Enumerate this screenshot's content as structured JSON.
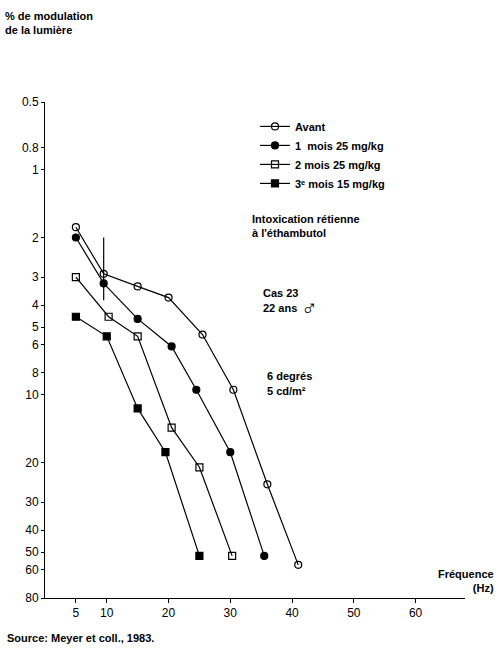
{
  "chart_data": {
    "type": "line",
    "y_label": "% de modulation de la lumière",
    "x_label": "Fréquence (Hz)",
    "source": "Source: Meyer et coll., 1983.",
    "annotations": [
      "Intoxication rétienne",
      "à l'éthambutol",
      "Cas 23",
      "22 ans",
      "♂",
      "6 degrés",
      "5 cd/m²"
    ],
    "log": "y",
    "grid": false,
    "legend": "top right",
    "xlim": [
      0,
      68
    ],
    "xticks": [
      5,
      10,
      20,
      30,
      40,
      50,
      60
    ],
    "ylim": [
      80,
      0.5
    ],
    "yticks": [
      0.5,
      0.8,
      1,
      2,
      3,
      4,
      5,
      6,
      8,
      10,
      20,
      30,
      40,
      50,
      60,
      80
    ],
    "series": [
      {
        "name": "Avant",
        "color": "#000000",
        "marker": "circle-open",
        "line_style": "solid",
        "x": [
          5,
          9.5,
          15,
          20,
          25.5,
          30.5,
          36,
          41
        ],
        "values": [
          1.8,
          2.9,
          3.3,
          3.7,
          5.4,
          9.5,
          25,
          57
        ],
        "error_bar": {
          "x": 9.5,
          "low": 2.0,
          "high": 3.8
        }
      },
      {
        "name": "1  mois 25 mg/kg",
        "color": "#000000",
        "marker": "circle",
        "line_style": "solid",
        "x": [
          5,
          9.5,
          15,
          20.5,
          24.5,
          30,
          35.5
        ],
        "values": [
          2.0,
          3.2,
          4.6,
          6.1,
          9.5,
          18,
          52
        ]
      },
      {
        "name": "2 mois 25 mg/kg",
        "color": "#000000",
        "marker": "square-open",
        "line_style": "solid",
        "x": [
          5,
          10.3,
          15,
          20.5,
          25,
          30.3
        ],
        "values": [
          3.0,
          4.5,
          5.5,
          14,
          21,
          52
        ]
      },
      {
        "name": "3ᵉ mois 15 mg/kg",
        "color": "#000000",
        "marker": "square",
        "line_style": "solid",
        "x": [
          5,
          10,
          15,
          19.5,
          25
        ],
        "values": [
          4.5,
          5.5,
          11.5,
          18,
          52
        ]
      }
    ]
  }
}
